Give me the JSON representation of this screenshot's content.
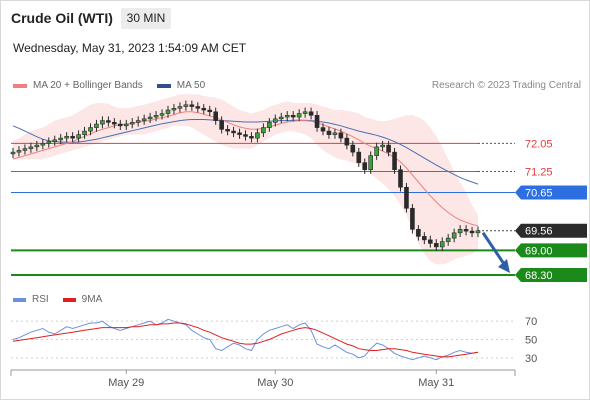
{
  "header": {
    "instrument": "Crude Oil (WTI)",
    "timeframe": "30 MIN",
    "datetime": "Wednesday, May 31, 2023 1:54:09 AM CET"
  },
  "legend": {
    "ma20_label": "MA 20 + Bollinger Bands",
    "ma50_label": "MA 50",
    "copyright": "Research © 2023 Trading Central"
  },
  "rsi_legend": {
    "rsi_label": "RSI",
    "ma_label": "9MA"
  },
  "colors": {
    "ma20": "#f08080",
    "ma50": "#4a6fb5",
    "bands": "#fbdede",
    "resistance": "#e23b3b",
    "pivot": "#2d6fe0",
    "support": "#1a8a1a",
    "last": "#2b2b2b",
    "arrow": "#2e5fa8",
    "rsi": "#6d8fe0",
    "rsi_ma": "#e02020"
  },
  "chart_data": [
    {
      "type": "line",
      "name": "price",
      "x_ticks": [
        "May 29",
        "May 30",
        "May 31"
      ],
      "ylim": [
        67.9,
        73.4
      ],
      "price_levels": [
        {
          "value": 72.05,
          "label": "72.05",
          "kind": "resistance"
        },
        {
          "value": 71.25,
          "label": "71.25",
          "kind": "resistance"
        },
        {
          "value": 70.65,
          "label": "70.65",
          "kind": "pivot"
        },
        {
          "value": 69.56,
          "label": "69.56",
          "kind": "last"
        },
        {
          "value": 69.0,
          "label": "69.00",
          "kind": "support"
        },
        {
          "value": 68.3,
          "label": "68.30",
          "kind": "support"
        }
      ],
      "close": [
        71.8,
        71.85,
        71.9,
        71.95,
        72.0,
        72.05,
        72.1,
        72.15,
        72.2,
        72.25,
        72.2,
        72.3,
        72.4,
        72.5,
        72.6,
        72.7,
        72.65,
        72.6,
        72.55,
        72.6,
        72.65,
        72.7,
        72.75,
        72.8,
        72.85,
        72.9,
        73.0,
        73.05,
        73.1,
        73.15,
        73.1,
        73.05,
        73.0,
        72.95,
        72.7,
        72.45,
        72.4,
        72.35,
        72.3,
        72.25,
        72.2,
        72.35,
        72.5,
        72.65,
        72.75,
        72.8,
        72.85,
        72.8,
        72.9,
        72.95,
        72.85,
        72.5,
        72.4,
        72.3,
        72.35,
        72.2,
        72.0,
        71.8,
        71.5,
        71.3,
        71.7,
        71.95,
        72.0,
        71.8,
        71.3,
        70.8,
        70.2,
        69.6,
        69.4,
        69.3,
        69.2,
        69.1,
        69.25,
        69.35,
        69.5,
        69.6,
        69.55,
        69.5,
        69.56
      ],
      "ma20": [
        71.6,
        71.65,
        71.7,
        71.75,
        71.8,
        71.85,
        71.9,
        71.95,
        72.0,
        72.05,
        72.1,
        72.18,
        72.25,
        72.32,
        72.4,
        72.45,
        72.5,
        72.55,
        72.58,
        72.6,
        72.62,
        72.65,
        72.68,
        72.7,
        72.75,
        72.78,
        72.82,
        72.87,
        72.92,
        72.95,
        72.95,
        72.92,
        72.88,
        72.83,
        72.78,
        72.72,
        72.65,
        72.58,
        72.52,
        72.48,
        72.45,
        72.45,
        72.48,
        72.52,
        72.57,
        72.62,
        72.66,
        72.68,
        72.7,
        72.7,
        72.68,
        72.64,
        72.58,
        72.52,
        72.46,
        72.4,
        72.32,
        72.24,
        72.15,
        72.05,
        71.97,
        71.9,
        71.83,
        71.75,
        71.65,
        71.52,
        71.35,
        71.15,
        70.95,
        70.75,
        70.56,
        70.38,
        70.22,
        70.08,
        69.96,
        69.87,
        69.8,
        69.74,
        69.7
      ],
      "ma50": [
        72.55,
        72.48,
        72.4,
        72.32,
        72.24,
        72.17,
        72.12,
        72.1,
        72.09,
        72.08,
        72.08,
        72.09,
        72.11,
        72.14,
        72.17,
        72.21,
        72.25,
        72.29,
        72.33,
        72.37,
        72.41,
        72.45,
        72.49,
        72.53,
        72.57,
        72.61,
        72.64,
        72.67,
        72.7,
        72.72,
        72.73,
        72.73,
        72.73,
        72.72,
        72.71,
        72.7,
        72.69,
        72.68,
        72.67,
        72.66,
        72.66,
        72.66,
        72.67,
        72.68,
        72.69,
        72.7,
        72.7,
        72.71,
        72.71,
        72.71,
        72.7,
        72.68,
        72.66,
        72.63,
        72.59,
        72.55,
        72.5,
        72.45,
        72.4,
        72.36,
        72.32,
        72.28,
        72.23,
        72.17,
        72.1,
        72.02,
        71.93,
        71.83,
        71.73,
        71.63,
        71.53,
        71.43,
        71.34,
        71.25,
        71.16,
        71.08,
        71.01,
        70.95,
        70.89
      ],
      "band_upper": [
        72.1,
        72.2,
        72.3,
        72.4,
        72.45,
        72.5,
        72.6,
        72.7,
        72.75,
        72.8,
        72.85,
        72.95,
        73.05,
        73.15,
        73.2,
        73.2,
        73.18,
        73.1,
        73.05,
        73.05,
        73.08,
        73.12,
        73.15,
        73.2,
        73.25,
        73.3,
        73.35,
        73.4,
        73.45,
        73.45,
        73.45,
        73.45,
        73.4,
        73.38,
        73.35,
        73.3,
        73.2,
        73.1,
        73.0,
        72.95,
        72.9,
        72.95,
        73.0,
        73.1,
        73.15,
        73.2,
        73.25,
        73.2,
        73.2,
        73.2,
        73.2,
        73.15,
        73.1,
        73.05,
        73.0,
        73.0,
        72.98,
        72.95,
        72.9,
        72.8,
        72.75,
        72.7,
        72.68,
        72.7,
        72.75,
        72.8,
        72.85,
        72.85,
        72.8,
        72.7,
        72.5,
        72.25,
        71.95,
        71.6,
        71.25,
        70.95,
        70.65,
        70.3,
        70.0
      ],
      "band_lower": [
        71.6,
        71.6,
        71.6,
        71.6,
        71.6,
        71.6,
        71.65,
        71.7,
        71.75,
        71.8,
        71.85,
        71.9,
        71.95,
        72.0,
        72.05,
        72.1,
        72.15,
        72.2,
        72.25,
        72.3,
        72.3,
        72.3,
        72.3,
        72.35,
        72.4,
        72.45,
        72.5,
        72.55,
        72.55,
        72.55,
        72.5,
        72.4,
        72.3,
        72.2,
        72.1,
        72.0,
        71.95,
        71.9,
        71.9,
        71.9,
        71.9,
        72.0,
        72.1,
        72.2,
        72.3,
        72.35,
        72.4,
        72.4,
        72.35,
        72.3,
        72.2,
        72.0,
        71.85,
        71.75,
        71.65,
        71.6,
        71.55,
        71.5,
        71.45,
        71.35,
        71.2,
        71.05,
        70.9,
        70.75,
        70.55,
        70.3,
        70.0,
        69.6,
        69.2,
        68.9,
        68.7,
        68.6,
        68.6,
        68.65,
        68.75,
        68.8,
        68.85,
        68.9,
        69.0
      ]
    },
    {
      "type": "line",
      "name": "rsi",
      "ylim": [
        20,
        80
      ],
      "y_ticks": [
        70,
        50,
        30
      ],
      "rsi": [
        50,
        52,
        55,
        58,
        60,
        62,
        58,
        56,
        60,
        64,
        62,
        64,
        66,
        68,
        68,
        70,
        65,
        62,
        60,
        62,
        64,
        66,
        68,
        70,
        66,
        68,
        72,
        70,
        68,
        66,
        60,
        56,
        52,
        50,
        40,
        38,
        42,
        46,
        44,
        40,
        38,
        50,
        56,
        60,
        62,
        64,
        66,
        62,
        66,
        68,
        60,
        45,
        42,
        40,
        44,
        40,
        36,
        34,
        30,
        32,
        40,
        46,
        44,
        40,
        35,
        32,
        30,
        28,
        30,
        32,
        30,
        28,
        31,
        33,
        36,
        38,
        36,
        35,
        36
      ],
      "rsi_ma": [
        48,
        49,
        50,
        51,
        52,
        53,
        54,
        55,
        56,
        57,
        58,
        59,
        60,
        61,
        62,
        63,
        63,
        63,
        63,
        63,
        64,
        64,
        65,
        66,
        66,
        67,
        67,
        68,
        68,
        67,
        65,
        63,
        60,
        58,
        55,
        52,
        50,
        48,
        46,
        45,
        45,
        46,
        48,
        50,
        53,
        56,
        58,
        60,
        62,
        63,
        62,
        60,
        57,
        54,
        51,
        48,
        45,
        43,
        40,
        39,
        38,
        38,
        39,
        40,
        40,
        39,
        38,
        36,
        35,
        34,
        33,
        32,
        31,
        31,
        32,
        33,
        34,
        35,
        36
      ]
    }
  ]
}
